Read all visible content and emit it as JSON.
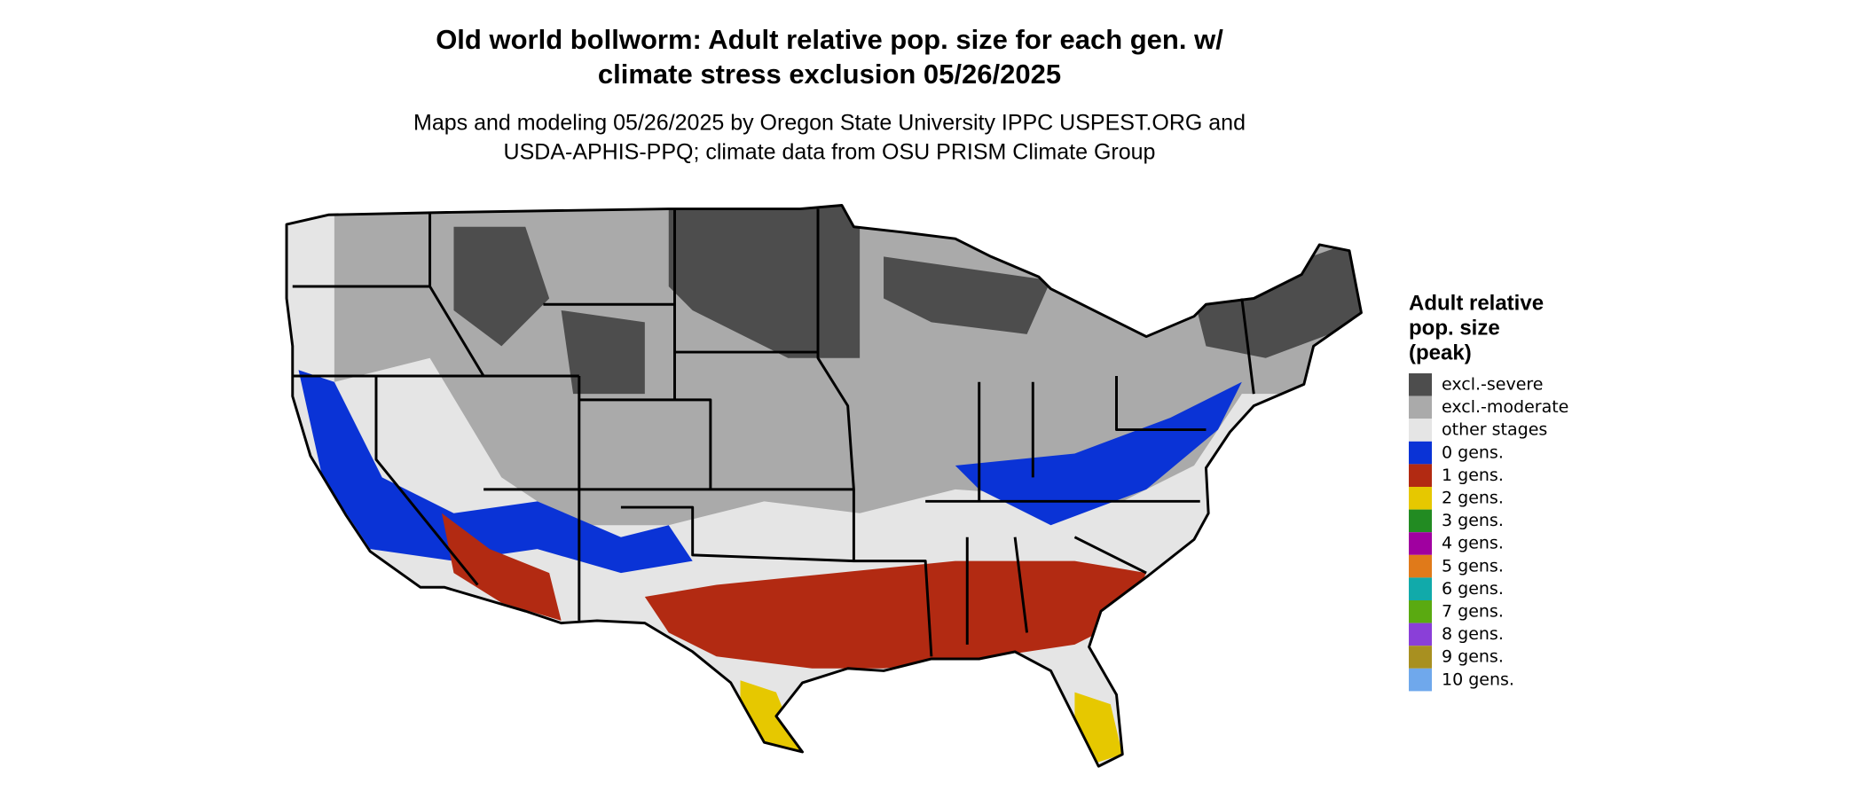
{
  "title_lines": [
    "Old world bollworm: Adult relative pop. size for each gen. w/",
    "climate stress exclusion 05/26/2025"
  ],
  "subtitle_lines": [
    "Maps and modeling 05/26/2025 by Oregon State University IPPC USPEST.ORG and",
    "USDA-APHIS-PPQ; climate data from OSU PRISM Climate Group"
  ],
  "legend": {
    "title_lines": [
      "Adult relative",
      "pop. size",
      "(peak)"
    ],
    "items": [
      {
        "label": "excl.-severe",
        "color": "#4d4d4d"
      },
      {
        "label": "excl.-moderate",
        "color": "#aaaaaa"
      },
      {
        "label": "other stages",
        "color": "#e5e5e5"
      },
      {
        "label": "0 gens.",
        "color": "#0a33d6"
      },
      {
        "label": "1 gens.",
        "color": "#b22a12"
      },
      {
        "label": "2 gens.",
        "color": "#e6c800"
      },
      {
        "label": "3 gens.",
        "color": "#228b22"
      },
      {
        "label": "4 gens.",
        "color": "#a000a0"
      },
      {
        "label": "5 gens.",
        "color": "#e07a1a"
      },
      {
        "label": "6 gens.",
        "color": "#11aaaa"
      },
      {
        "label": "7 gens.",
        "color": "#5aaa11"
      },
      {
        "label": "8 gens.",
        "color": "#8a3fd8"
      },
      {
        "label": "9 gens.",
        "color": "#a89020"
      },
      {
        "label": "10 gens.",
        "color": "#6fa8ec"
      }
    ]
  }
}
